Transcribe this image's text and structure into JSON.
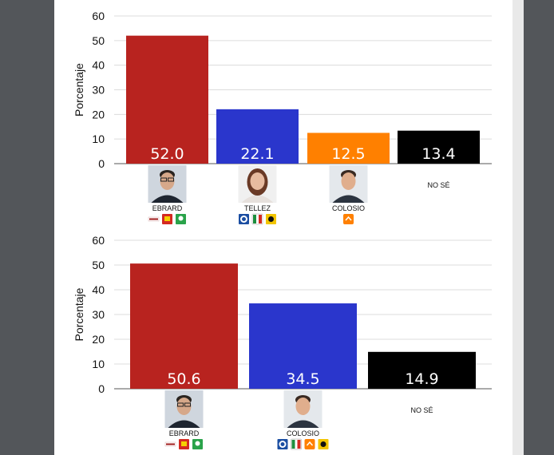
{
  "colors": {
    "ebrard": "#b8231f",
    "tellez": "#2a36cc",
    "colosio": "#ff8000",
    "nose": "#000000",
    "grid": "#dcdcdc",
    "morena": "#a01e1e",
    "pt": "#d42a22",
    "verde": "#2aa34a",
    "pan": "#1b4ea2",
    "pri": "#1d8f3e",
    "prd": "#f2c500",
    "mc": "#ff8000"
  },
  "chart_data": [
    {
      "type": "bar",
      "ylabel": "Porcentaje",
      "ylim": [
        0,
        60
      ],
      "yticks": [
        0,
        10,
        20,
        30,
        40,
        50,
        60
      ],
      "grid": true,
      "categories": [
        "EBRARD",
        "TELLEZ",
        "COLOSIO",
        "NO SÉ"
      ],
      "values": [
        52.0,
        22.1,
        12.5,
        13.4
      ],
      "value_labels": [
        "52.0",
        "22.1",
        "12.5",
        "13.4"
      ],
      "bar_colors": [
        "ebrard",
        "tellez",
        "colosio",
        "nose"
      ],
      "logos": [
        [
          "morena-logo",
          "pt-logo",
          "verde-logo"
        ],
        [
          "pan-logo",
          "pri-logo",
          "prd-logo"
        ],
        [
          "mc-logo"
        ],
        []
      ],
      "photos": [
        "ebrard-photo",
        "tellez-photo",
        "colosio-photo",
        null
      ]
    },
    {
      "type": "bar",
      "ylabel": "Porcentaje",
      "ylim": [
        0,
        60
      ],
      "yticks": [
        0,
        10,
        20,
        30,
        40,
        50,
        60
      ],
      "grid": true,
      "categories": [
        "EBRARD",
        "COLOSIO",
        "NO SÉ"
      ],
      "values": [
        50.6,
        34.5,
        14.9
      ],
      "value_labels": [
        "50.6",
        "34.5",
        "14.9"
      ],
      "bar_colors": [
        "ebrard",
        "tellez",
        "nose"
      ],
      "logos": [
        [
          "morena-logo",
          "pt-logo",
          "verde-logo"
        ],
        [
          "pan-logo",
          "pri-logo",
          "mc-logo",
          "prd-logo"
        ],
        []
      ],
      "photos": [
        "ebrard-photo",
        "colosio-photo",
        null
      ]
    }
  ]
}
